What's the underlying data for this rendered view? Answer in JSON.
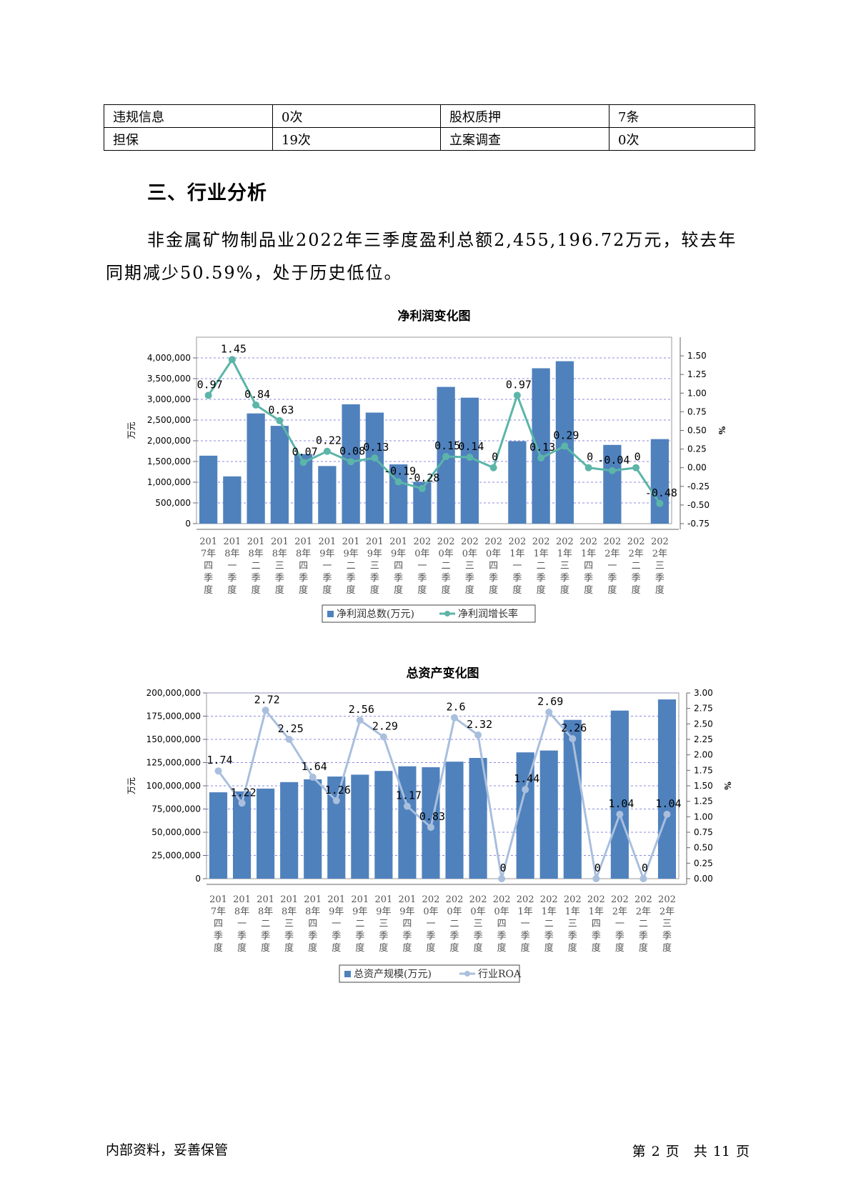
{
  "table": {
    "rows": [
      [
        "违规信息",
        "0次",
        "股权质押",
        "7条"
      ],
      [
        "担保",
        "19次",
        "立案调查",
        "0次"
      ]
    ]
  },
  "section": {
    "title": "三、行业分析",
    "paragraph": "非金属矿物制品业2022年三季度盈利总额2,455,196.72万元，较去年同期减少50.59%，处于历史低位。"
  },
  "categories": [
    "2017年四季度",
    "2018年一季度",
    "2018年二季度",
    "2018年三季度",
    "2018年四季度",
    "2019年一季度",
    "2019年二季度",
    "2019年三季度",
    "2019年四季度",
    "2020年一季度",
    "2020年二季度",
    "2020年三季度",
    "2020年四季度",
    "2021年一季度",
    "2021年二季度",
    "2021年三季度",
    "2021年四季度",
    "2022年一季度",
    "2022年二季度",
    "2022年三季度"
  ],
  "chart_data": [
    {
      "type": "bar",
      "title": "净利润变化图",
      "ylabel_left": "万元",
      "ylabel_right": "%",
      "ylim_left": [
        0,
        4500000
      ],
      "left_ticks": [
        0,
        500000,
        1000000,
        1500000,
        2000000,
        2500000,
        3000000,
        3500000,
        4000000
      ],
      "left_tick_labels": [
        "0",
        "500,000",
        "1,000,000",
        "1,500,000",
        "2,000,000",
        "2,500,000",
        "3,000,000",
        "3,500,000",
        "4,000,000"
      ],
      "ylim_right": [
        -0.75,
        1.75
      ],
      "right_ticks": [
        -0.75,
        -0.5,
        -0.25,
        0,
        0.25,
        0.5,
        0.75,
        1.0,
        1.25,
        1.5
      ],
      "right_tick_labels": [
        "-0.75",
        "-0.50",
        "-0.25",
        "0.00",
        "0.25",
        "0.50",
        "0.75",
        "1.00",
        "1.25",
        "1.50"
      ],
      "grid": true,
      "legend_position": "bottom",
      "series": [
        {
          "name": "净利润总数(万元)",
          "kind": "bar",
          "color": "#4F81BD",
          "values": [
            1640000,
            1140000,
            2660000,
            2360000,
            1680000,
            1390000,
            2880000,
            2680000,
            1430000,
            1010000,
            3300000,
            3040000,
            0,
            1990000,
            3750000,
            3920000,
            0,
            1900000,
            0,
            2040000
          ]
        },
        {
          "name": "净利润增长率",
          "kind": "line",
          "color": "#5BB5A8",
          "values": [
            0.97,
            1.45,
            0.84,
            0.63,
            0.07,
            0.22,
            0.08,
            0.13,
            -0.19,
            -0.28,
            0.15,
            0.14,
            0,
            0.97,
            0.13,
            0.29,
            0,
            -0.04,
            0,
            -0.48
          ],
          "labels": [
            "0.97",
            "1.45",
            "0.84",
            "0.63",
            "0.07",
            "0.22",
            "0.08",
            "0.13",
            "-0.19",
            "-0.28",
            "0.15",
            "0.14",
            "0",
            "0.97",
            "0.13",
            "0.29",
            "0",
            "-0.04",
            "0",
            "-0.48"
          ]
        }
      ]
    },
    {
      "type": "bar",
      "title": "总资产变化图",
      "ylabel_left": "万元",
      "ylabel_right": "%",
      "ylim_left": [
        0,
        200000000
      ],
      "left_ticks": [
        0,
        25000000,
        50000000,
        75000000,
        100000000,
        125000000,
        150000000,
        175000000,
        200000000
      ],
      "left_tick_labels": [
        "0",
        "25,000,000",
        "50,000,000",
        "75,000,000",
        "100,000,000",
        "125,000,000",
        "150,000,000",
        "175,000,000",
        "200,000,000"
      ],
      "ylim_right": [
        0,
        3.0
      ],
      "right_ticks": [
        0,
        0.25,
        0.5,
        0.75,
        1.0,
        1.25,
        1.5,
        1.75,
        2.0,
        2.25,
        2.5,
        2.75,
        3.0
      ],
      "right_tick_labels": [
        "0.00",
        "0.25",
        "0.50",
        "0.75",
        "1.00",
        "1.25",
        "1.50",
        "1.75",
        "2.00",
        "2.25",
        "2.50",
        "2.75",
        "3.00"
      ],
      "grid": true,
      "legend_position": "bottom",
      "series": [
        {
          "name": "总资产规模(万元)",
          "kind": "bar",
          "color": "#4F81BD",
          "values": [
            93000000,
            94000000,
            97000000,
            104000000,
            107000000,
            110000000,
            112000000,
            116000000,
            121000000,
            120000000,
            126000000,
            130000000,
            0,
            136000000,
            138000000,
            171000000,
            0,
            181000000,
            0,
            193000000
          ]
        },
        {
          "name": "行业ROA",
          "kind": "line",
          "color": "#A9BFDD",
          "values": [
            1.74,
            1.22,
            2.72,
            2.25,
            1.64,
            1.26,
            2.56,
            2.29,
            1.17,
            0.83,
            2.6,
            2.32,
            0,
            1.44,
            2.69,
            2.26,
            0,
            1.04,
            0,
            1.04
          ],
          "labels": [
            "1.74",
            "1.22",
            "2.72",
            "2.25",
            "1.64",
            "1.26",
            "2.56",
            "2.29",
            "1.17",
            "0.83",
            "2.6",
            "2.32",
            "0",
            "1.44",
            "2.69",
            "2.26",
            "0",
            "1.04",
            "0",
            "1.04"
          ]
        }
      ]
    }
  ],
  "footer": {
    "left": "内部资料，妥善保管",
    "page_prefix": "第",
    "page_num": "2",
    "page_unit": "页",
    "total_prefix": "共",
    "total_num": "11",
    "total_unit": "页"
  }
}
